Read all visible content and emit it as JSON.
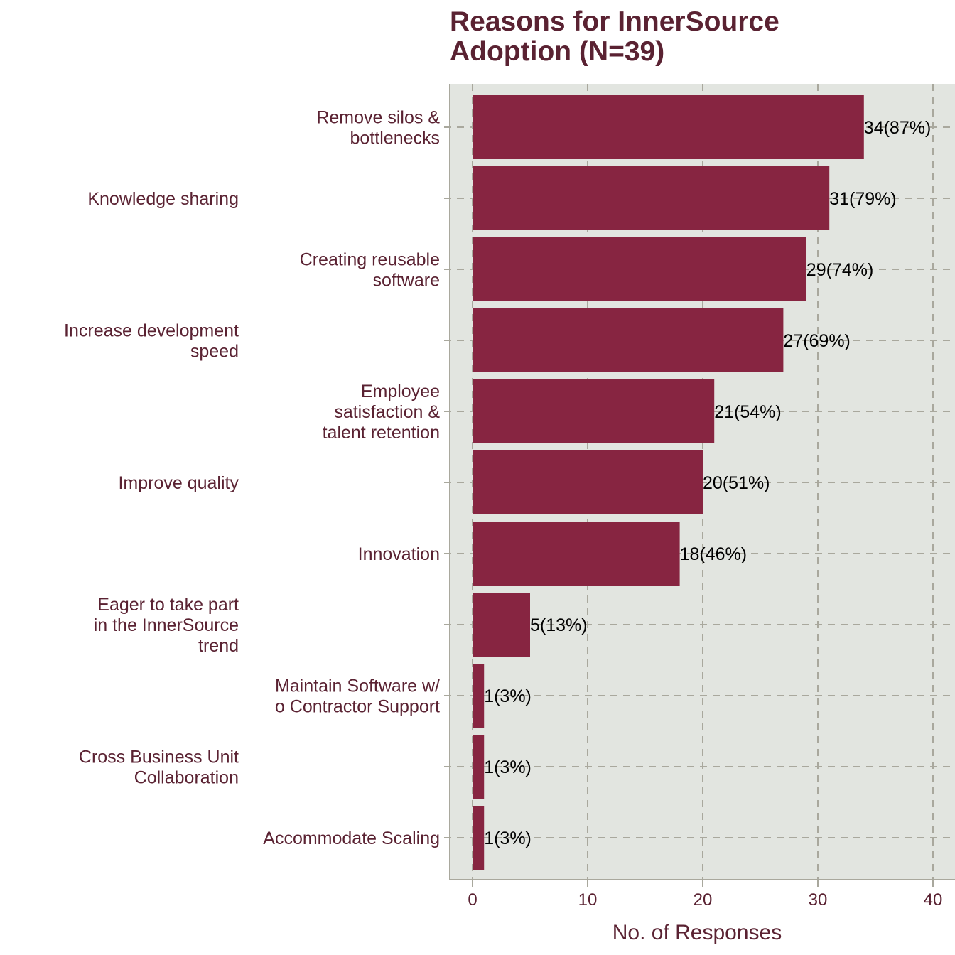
{
  "chart_data": {
    "type": "bar",
    "orientation": "horizontal",
    "title": [
      "Reasons for InnerSource",
      "Adoption (N=39)"
    ],
    "xlabel": "No. of Responses",
    "ylabel": "",
    "xlim": [
      0,
      40
    ],
    "xticks": [
      "0",
      "10",
      "20",
      "30",
      "40"
    ],
    "grid": true,
    "colors": {
      "bar": "#872541",
      "plot_bg": "#e2e5e0",
      "grid": "#a9a89d",
      "text": "#5a2232"
    },
    "categories": [
      [
        "Remove silos &",
        "bottlenecks"
      ],
      [
        "Knowledge sharing"
      ],
      [
        "Creating reusable",
        "software"
      ],
      [
        "Increase development",
        "speed"
      ],
      [
        "Employee",
        "satisfaction &",
        "talent retention"
      ],
      [
        "Improve quality"
      ],
      [
        "Innovation"
      ],
      [
        "Eager to take part",
        "in the InnerSource",
        "trend"
      ],
      [
        "Maintain Software w/",
        "o Contractor Support"
      ],
      [
        "Cross Business Unit",
        "Collaboration"
      ],
      [
        "Accommodate Scaling"
      ]
    ],
    "values": [
      34,
      31,
      29,
      27,
      21,
      20,
      18,
      5,
      1,
      1,
      1
    ],
    "data_labels": [
      "34(87%)",
      "31(79%)",
      "29(74%)",
      "27(69%)",
      "21(54%)",
      "20(51%)",
      "18(46%)",
      "5(13%)",
      "1(3%)",
      "1(3%)",
      "1(3%)"
    ]
  }
}
